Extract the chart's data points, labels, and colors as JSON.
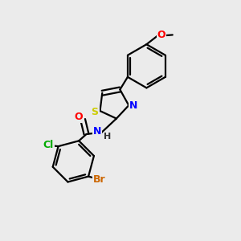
{
  "background_color": "#ebebeb",
  "bond_color": "#000000",
  "bond_width": 1.6,
  "atom_colors": {
    "O": "#ff0000",
    "N": "#0000ff",
    "S": "#cccc00",
    "Cl": "#00aa00",
    "Br": "#cc6600",
    "H": "#333333",
    "C": "#000000"
  },
  "figsize": [
    3.0,
    3.0
  ],
  "dpi": 100
}
